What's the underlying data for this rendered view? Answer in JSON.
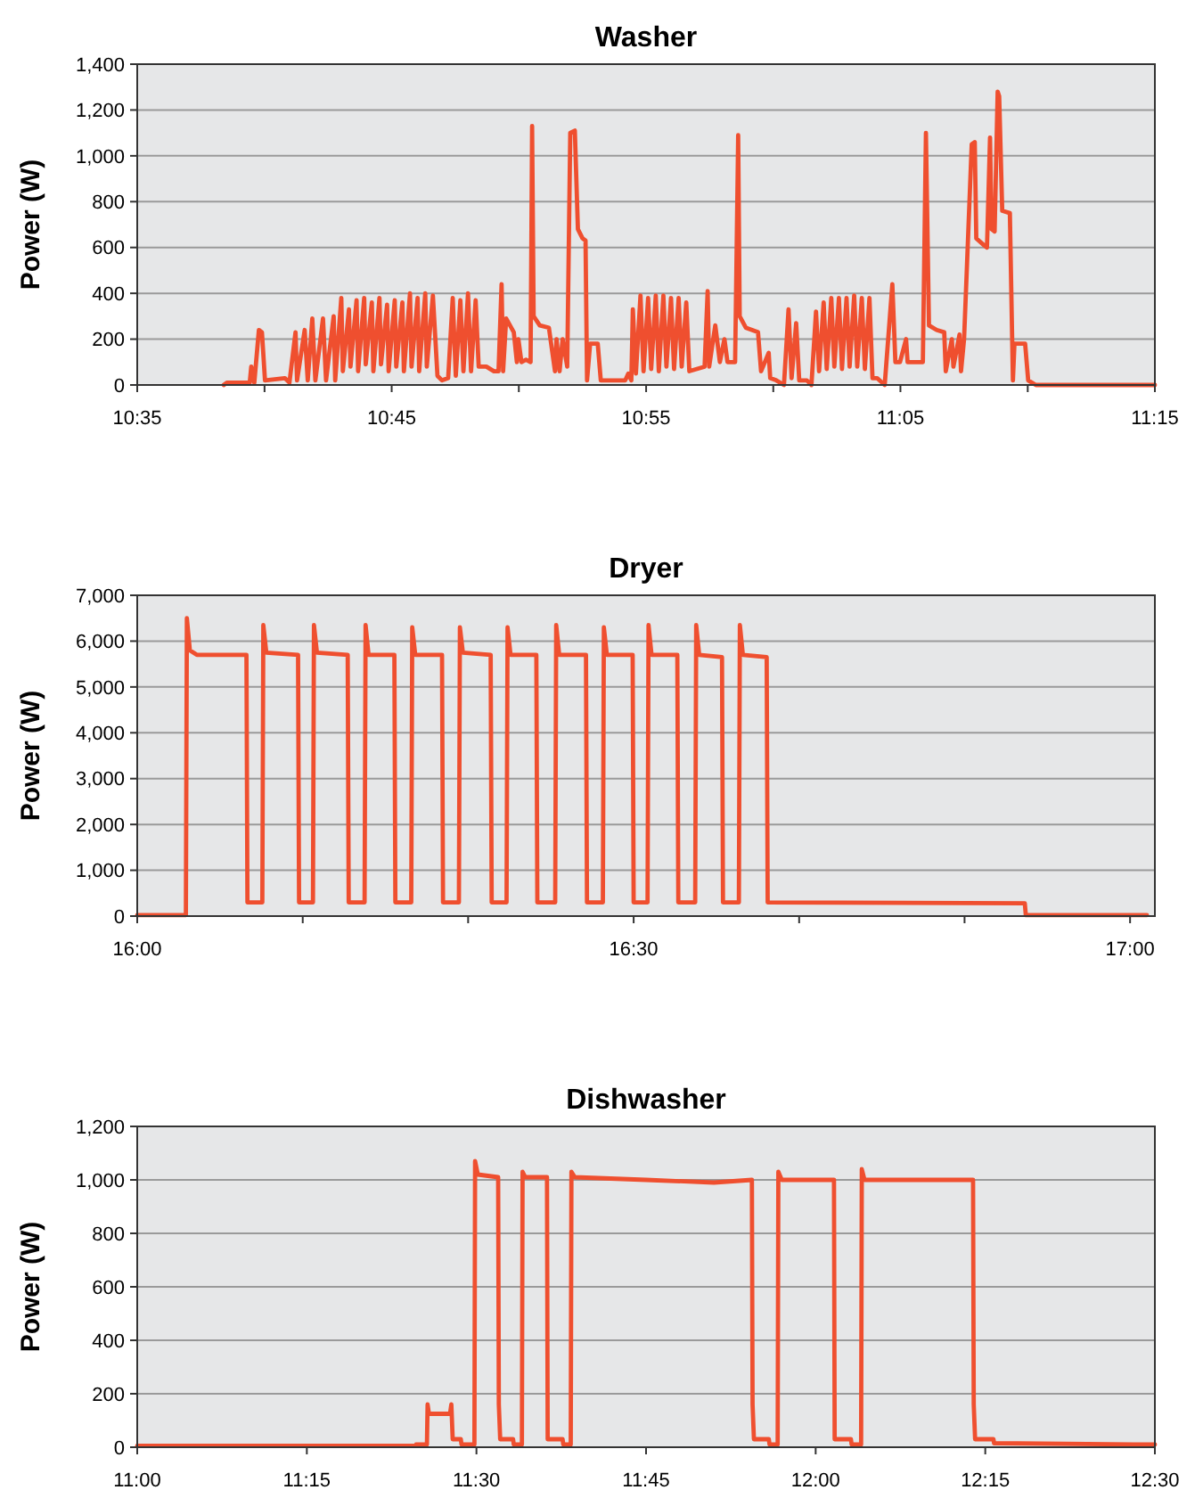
{
  "chart_data": [
    {
      "type": "line",
      "title": "Washer",
      "ylabel": "Power (W)",
      "grid": "y",
      "xlim": [
        10.5833,
        11.25
      ],
      "ylim": [
        0,
        1400
      ],
      "xticks": [
        {
          "value": 10.5833,
          "label": "10:35"
        },
        {
          "value": 10.6667,
          "label": null
        },
        {
          "value": 10.75,
          "label": "10:45"
        },
        {
          "value": 10.8333,
          "label": null
        },
        {
          "value": 10.9167,
          "label": "10:55"
        },
        {
          "value": 11.0,
          "label": null
        },
        {
          "value": 11.0833,
          "label": "11:05"
        },
        {
          "value": 11.1667,
          "label": null
        },
        {
          "value": 11.25,
          "label": "11:15"
        }
      ],
      "yticks": [
        0,
        200,
        400,
        600,
        800,
        {
          "value": 1000,
          "label": "1,000"
        },
        {
          "value": 1200,
          "label": "1,200"
        },
        {
          "value": 1400,
          "label": "1,400"
        }
      ],
      "x": [
        10.64,
        10.642,
        10.657,
        10.658,
        10.66,
        10.663,
        10.665,
        10.667,
        10.68,
        10.683,
        10.687,
        10.688,
        10.693,
        10.695,
        10.698,
        10.7,
        10.705,
        10.707,
        10.712,
        10.713,
        10.717,
        10.718,
        10.722,
        10.723,
        10.727,
        10.728,
        10.732,
        10.733,
        10.737,
        10.738,
        10.742,
        10.743,
        10.747,
        10.748,
        10.752,
        10.753,
        10.757,
        10.758,
        10.762,
        10.763,
        10.767,
        10.768,
        10.772,
        10.773,
        10.777,
        10.78,
        10.783,
        10.787,
        10.79,
        10.792,
        10.795,
        10.797,
        10.8,
        10.802,
        10.805,
        10.807,
        10.812,
        10.817,
        10.82,
        10.822,
        10.823,
        10.825,
        10.83,
        10.832,
        10.833,
        10.835,
        10.838,
        10.841,
        10.842,
        10.843,
        10.847,
        10.853,
        10.857,
        10.858,
        10.86,
        10.862,
        10.865,
        10.867,
        10.87,
        10.872,
        10.875,
        10.877,
        10.878,
        10.88,
        10.885,
        10.887,
        10.903,
        10.905,
        10.907,
        10.908,
        10.91,
        10.913,
        10.915,
        10.918,
        10.92,
        10.923,
        10.925,
        10.928,
        10.93,
        10.933,
        10.935,
        10.938,
        10.94,
        10.943,
        10.945,
        10.95,
        10.955,
        10.957,
        10.958,
        10.962,
        10.965,
        10.968,
        10.97,
        10.975,
        10.977,
        10.978,
        10.982,
        10.99,
        10.992,
        10.997,
        10.998,
        11.002,
        11.007,
        11.01,
        11.012,
        11.015,
        11.017,
        11.022,
        11.025,
        11.028,
        11.03,
        11.033,
        11.035,
        11.038,
        11.04,
        11.043,
        11.045,
        11.048,
        11.05,
        11.053,
        11.055,
        11.058,
        11.06,
        11.063,
        11.065,
        11.068,
        11.073,
        11.078,
        11.08,
        11.083,
        11.087,
        11.088,
        11.098,
        11.1,
        11.102,
        11.107,
        11.112,
        11.113,
        11.117,
        11.118,
        11.122,
        11.123,
        11.125,
        11.13,
        11.132,
        11.133,
        11.138,
        11.14,
        11.142,
        11.143,
        11.145,
        11.147,
        11.148,
        11.15,
        11.155,
        11.157,
        11.158,
        11.165,
        11.167,
        11.172,
        11.25
      ],
      "series": [
        {
          "color": "#ef4f2f",
          "values": [
            0,
            10,
            10,
            80,
            10,
            240,
            230,
            20,
            30,
            10,
            230,
            20,
            240,
            20,
            290,
            20,
            290,
            20,
            300,
            20,
            380,
            60,
            330,
            80,
            370,
            60,
            380,
            90,
            360,
            60,
            380,
            90,
            350,
            60,
            370,
            80,
            360,
            60,
            400,
            80,
            380,
            60,
            400,
            80,
            390,
            40,
            20,
            30,
            380,
            40,
            370,
            60,
            400,
            60,
            370,
            80,
            80,
            60,
            60,
            440,
            60,
            290,
            230,
            100,
            200,
            100,
            110,
            100,
            1130,
            300,
            260,
            250,
            60,
            200,
            60,
            200,
            80,
            1100,
            1110,
            680,
            640,
            630,
            20,
            180,
            180,
            20,
            20,
            50,
            20,
            330,
            50,
            390,
            60,
            380,
            70,
            390,
            60,
            390,
            80,
            380,
            70,
            380,
            80,
            360,
            60,
            70,
            80,
            410,
            80,
            260,
            100,
            200,
            100,
            100,
            1090,
            300,
            250,
            230,
            60,
            140,
            30,
            20,
            0,
            330,
            30,
            270,
            20,
            20,
            0,
            320,
            60,
            360,
            70,
            380,
            80,
            380,
            70,
            380,
            80,
            390,
            80,
            380,
            70,
            380,
            30,
            30,
            0,
            440,
            100,
            100,
            200,
            100,
            100,
            1100,
            260,
            240,
            230,
            60,
            200,
            80,
            220,
            60,
            200,
            1050,
            1060,
            640,
            610,
            600,
            1080,
            680,
            670,
            1280,
            1260,
            760,
            750,
            20,
            180,
            180,
            20,
            0,
            0
          ]
        }
      ]
    },
    {
      "type": "line",
      "title": "Dryer",
      "ylabel": "Power (W)",
      "grid": "y",
      "xlim": [
        16.0,
        17.025
      ],
      "ylim": [
        0,
        7000
      ],
      "xticks": [
        {
          "value": 16.0,
          "label": "16:00"
        },
        {
          "value": 16.1667,
          "label": null
        },
        {
          "value": 16.3333,
          "label": null
        },
        {
          "value": 16.5,
          "label": "16:30"
        },
        {
          "value": 16.6667,
          "label": null
        },
        {
          "value": 16.8333,
          "label": null
        },
        {
          "value": 17.0,
          "label": "17:00"
        }
      ],
      "yticks": [
        0,
        {
          "value": 1000,
          "label": "1,000"
        },
        {
          "value": 2000,
          "label": "2,000"
        },
        {
          "value": 3000,
          "label": "3,000"
        },
        {
          "value": 4000,
          "label": "4,000"
        },
        {
          "value": 5000,
          "label": "5,000"
        },
        {
          "value": 6000,
          "label": "6,000"
        },
        {
          "value": 7000,
          "label": "7,000"
        }
      ],
      "x": [
        16.0,
        16.049,
        16.05,
        16.053,
        16.06,
        16.11,
        16.111,
        16.126,
        16.127,
        16.13,
        16.162,
        16.163,
        16.177,
        16.178,
        16.181,
        16.212,
        16.213,
        16.229,
        16.23,
        16.233,
        16.259,
        16.26,
        16.276,
        16.277,
        16.28,
        16.307,
        16.308,
        16.324,
        16.325,
        16.328,
        16.356,
        16.357,
        16.372,
        16.373,
        16.376,
        16.402,
        16.403,
        16.421,
        16.422,
        16.425,
        16.452,
        16.453,
        16.469,
        16.47,
        16.473,
        16.499,
        16.5,
        16.514,
        16.515,
        16.518,
        16.544,
        16.545,
        16.562,
        16.563,
        16.566,
        16.589,
        16.59,
        16.606,
        16.607,
        16.61,
        16.634,
        16.635,
        16.894,
        16.895,
        17.017
      ],
      "series": [
        {
          "color": "#ef4f2f",
          "values": [
            20,
            20,
            6500,
            5800,
            5700,
            5700,
            300,
            300,
            6350,
            5750,
            5700,
            300,
            300,
            6350,
            5750,
            5700,
            300,
            300,
            6350,
            5700,
            5700,
            300,
            300,
            6300,
            5700,
            5700,
            300,
            300,
            6300,
            5750,
            5700,
            300,
            300,
            6300,
            5700,
            5700,
            300,
            300,
            6350,
            5700,
            5700,
            300,
            300,
            6300,
            5700,
            5700,
            300,
            300,
            6350,
            5700,
            5700,
            300,
            300,
            6350,
            5700,
            5650,
            300,
            300,
            6350,
            5700,
            5650,
            300,
            280,
            20,
            20
          ]
        }
      ]
    },
    {
      "type": "line",
      "title": "Dishwasher",
      "ylabel": "Power (W)",
      "grid": "y",
      "xlim": [
        11.0,
        12.5
      ],
      "ylim": [
        0,
        1200
      ],
      "xticks": [
        {
          "value": 11.0,
          "label": "11:00"
        },
        {
          "value": 11.25,
          "label": "11:15"
        },
        {
          "value": 11.5,
          "label": "11:30"
        },
        {
          "value": 11.75,
          "label": "11:45"
        },
        {
          "value": 12.0,
          "label": "12:00"
        },
        {
          "value": 12.25,
          "label": "12:15"
        },
        {
          "value": 12.5,
          "label": "12:30"
        }
      ],
      "yticks": [
        0,
        200,
        400,
        600,
        800,
        {
          "value": 1000,
          "label": "1,000"
        },
        {
          "value": 1200,
          "label": "1,200"
        }
      ],
      "x": [
        11.0,
        11.41,
        11.411,
        11.427,
        11.428,
        11.43,
        11.461,
        11.463,
        11.465,
        11.477,
        11.478,
        11.497,
        11.498,
        11.502,
        11.532,
        11.533,
        11.535,
        11.554,
        11.555,
        11.567,
        11.568,
        11.572,
        11.604,
        11.605,
        11.627,
        11.628,
        11.639,
        11.64,
        11.645,
        11.75,
        11.85,
        11.906,
        11.907,
        11.909,
        11.931,
        11.932,
        11.944,
        11.945,
        11.95,
        12.027,
        12.028,
        12.052,
        12.053,
        12.067,
        12.068,
        12.072,
        12.232,
        12.233,
        12.235,
        12.262,
        12.263,
        12.5
      ],
      "series": [
        {
          "color": "#ef4f2f",
          "values": [
            5,
            5,
            10,
            10,
            160,
            125,
            125,
            160,
            30,
            30,
            10,
            10,
            1070,
            1020,
            1010,
            160,
            30,
            30,
            10,
            10,
            1030,
            1010,
            1010,
            30,
            30,
            10,
            10,
            1030,
            1010,
            1000,
            990,
            1000,
            160,
            30,
            30,
            10,
            10,
            1030,
            1000,
            1000,
            30,
            30,
            10,
            10,
            1040,
            1000,
            1000,
            160,
            30,
            30,
            15,
            10
          ]
        }
      ]
    }
  ]
}
